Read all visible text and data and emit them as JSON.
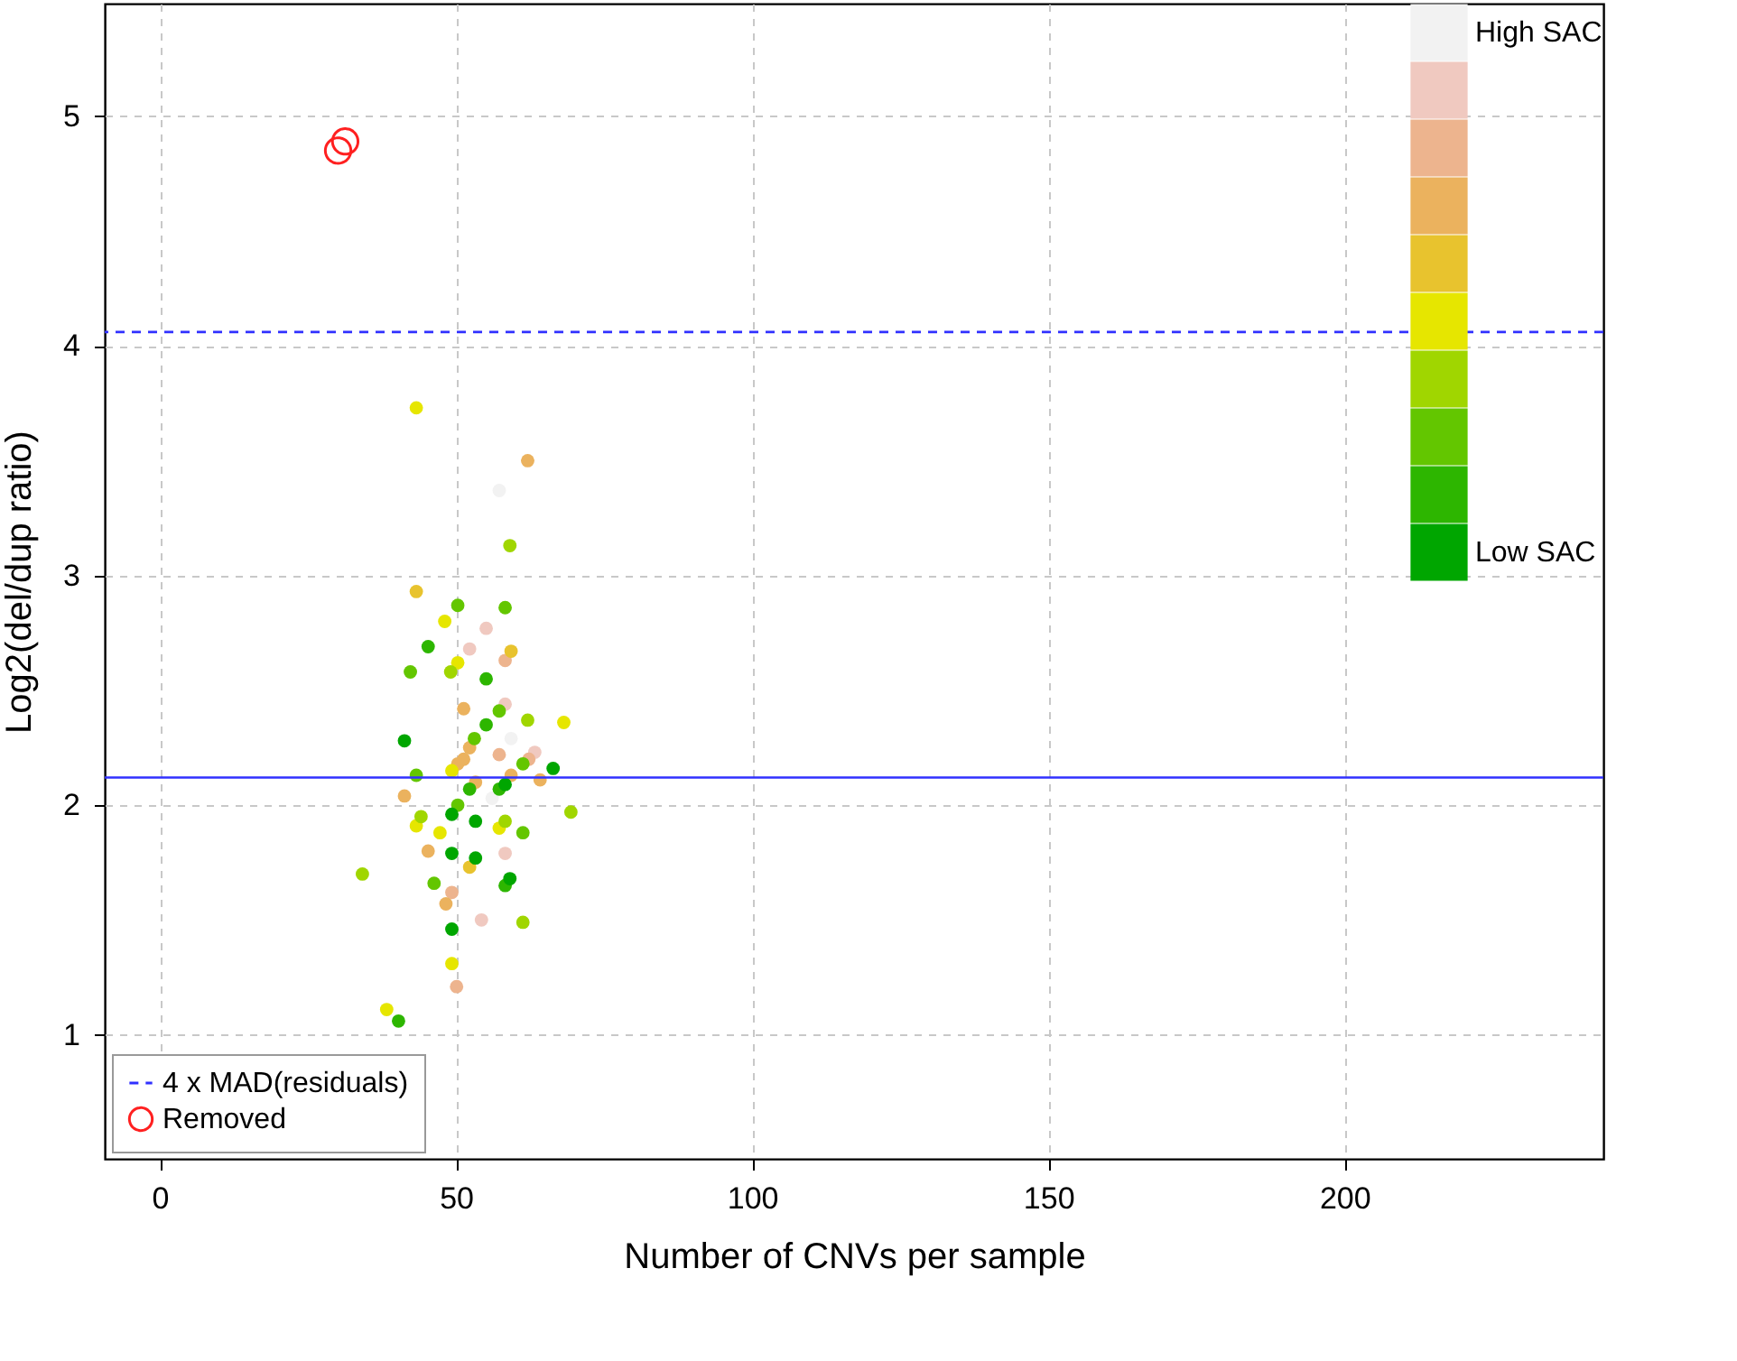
{
  "chart_data": {
    "type": "scatter",
    "xlabel": "Number of CNVs per sample",
    "ylabel": "Log2(del/dup ratio)",
    "xlim": [
      -9.3,
      243.7
    ],
    "ylim": [
      0.46,
      5.49
    ],
    "xticks": [
      0,
      50,
      100,
      150,
      200
    ],
    "yticks": [
      1,
      2,
      3,
      4,
      5
    ],
    "grid": true,
    "legend": "top right",
    "marker": "circle",
    "series": [
      {
        "name": "High SAC",
        "color": "#f2f2f2",
        "x": [
          57.3,
          59.3,
          56.1
        ],
        "values": [
          3.37,
          2.29,
          2.03
        ]
      },
      {
        "color": "#f0c9c0",
        "x": [
          55.1,
          52.3,
          58.3,
          63.3,
          58.3,
          54.3
        ],
        "values": [
          2.77,
          2.68,
          2.44,
          2.23,
          1.79,
          1.5
        ]
      },
      {
        "color": "#edb48e",
        "x": [
          58.3,
          57.3,
          62.3,
          49.3,
          50.1
        ],
        "values": [
          2.63,
          2.22,
          2.2,
          1.62,
          1.21
        ]
      },
      {
        "color": "#ebb25e",
        "x": [
          62.1,
          51.3,
          52.3,
          51.3,
          50.3,
          53.3,
          59.3,
          64.2,
          41.3,
          45.3,
          48.3
        ],
        "values": [
          3.5,
          2.42,
          2.25,
          2.2,
          2.18,
          2.1,
          2.13,
          2.11,
          2.04,
          1.8,
          1.57
        ]
      },
      {
        "color": "#e8c32e",
        "x": [
          43.3,
          59.3,
          52.3
        ],
        "values": [
          2.93,
          2.67,
          1.73
        ]
      },
      {
        "color": "#e6e600",
        "x": [
          43.3,
          48.1,
          50.3,
          68.2,
          49.3,
          43.3,
          57.3,
          47.3,
          49.3,
          38.3
        ],
        "values": [
          3.73,
          2.8,
          2.62,
          2.36,
          2.15,
          1.91,
          1.9,
          1.88,
          1.31,
          1.11
        ]
      },
      {
        "color": "#a0d600",
        "x": [
          59.1,
          49.1,
          62.1,
          44.1,
          58.3,
          69.4,
          34.2,
          61.3
        ],
        "values": [
          3.13,
          2.58,
          2.37,
          1.95,
          1.93,
          1.97,
          1.7,
          1.49
        ]
      },
      {
        "color": "#63c600",
        "x": [
          50.3,
          58.3,
          42.3,
          57.3,
          53.1,
          61.3,
          43.3,
          50.3,
          61.3,
          46.3
        ],
        "values": [
          2.87,
          2.86,
          2.58,
          2.41,
          2.29,
          2.18,
          2.13,
          2.0,
          1.88,
          1.66
        ]
      },
      {
        "color": "#2db600",
        "x": [
          45.3,
          55.1,
          55.1,
          57.3,
          52.3,
          58.3,
          40.3
        ],
        "values": [
          2.69,
          2.55,
          2.35,
          2.07,
          2.07,
          1.65,
          1.06
        ]
      },
      {
        "name": "Low SAC",
        "color": "#00a600",
        "x": [
          41.3,
          66.4,
          58.3,
          49.3,
          53.3,
          49.3,
          53.3,
          59.1,
          49.3
        ],
        "values": [
          2.28,
          2.16,
          2.09,
          1.96,
          1.93,
          1.79,
          1.77,
          1.68,
          1.46
        ]
      },
      {
        "name": "Removed",
        "color": "#ff2020",
        "x": [
          30.1,
          31.3
        ],
        "values": [
          4.85,
          4.89
        ]
      }
    ],
    "ref_lines": [
      {
        "axis": "y",
        "value": 4.06,
        "label": "4 x MAD(residuals)",
        "color": "#3030ff",
        "line_style": "dashed"
      },
      {
        "axis": "y",
        "value": 2.12,
        "color": "#3030ff",
        "line_style": "solid"
      }
    ]
  }
}
